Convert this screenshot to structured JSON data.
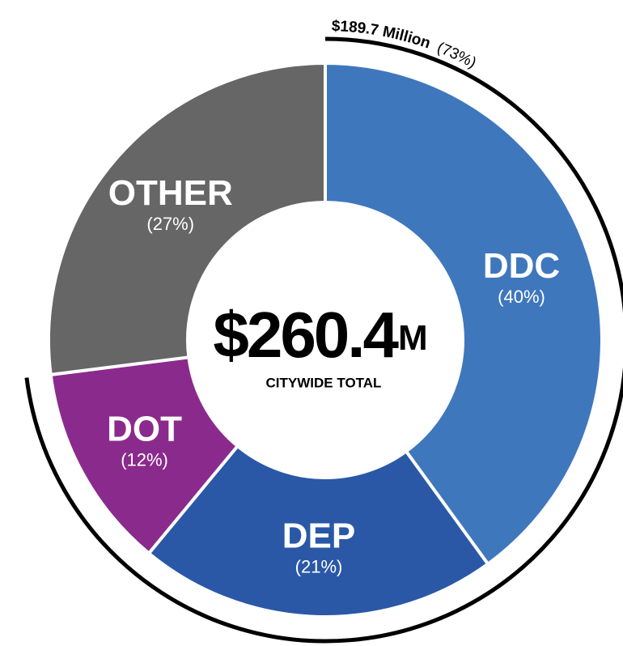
{
  "chart_data": {
    "type": "donut",
    "categories": [
      "DDC",
      "DEP",
      "DOT",
      "OTHER"
    ],
    "values": [
      40,
      21,
      12,
      27
    ],
    "value_labels": [
      "(40%)",
      "(21%)",
      "(12%)",
      "(27%)"
    ],
    "colors": [
      "#3f77bd",
      "#2a58a6",
      "#8b2a8d",
      "#666666"
    ],
    "center_value": "$260.4",
    "center_unit": "M",
    "center_label": "CITYWIDE TOTAL",
    "bracket_label": "$189.7 Million",
    "bracket_pct": "(73%)"
  }
}
